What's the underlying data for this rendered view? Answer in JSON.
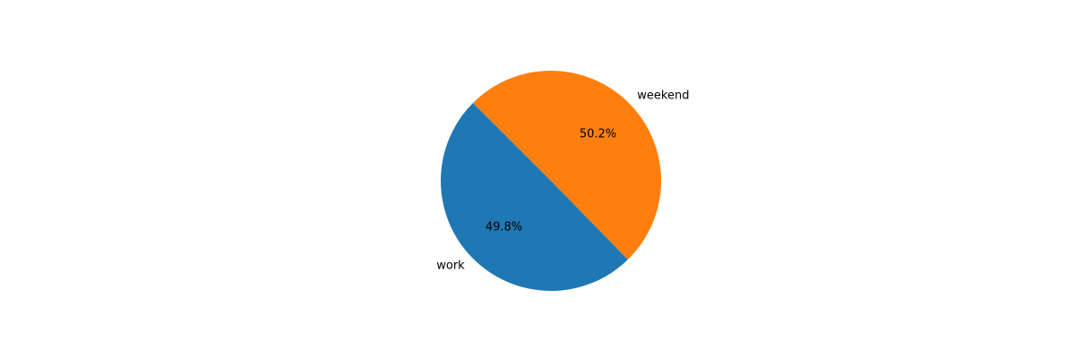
{
  "chart_data": {
    "type": "pie",
    "title": "",
    "categories": [
      "work",
      "weekend"
    ],
    "values": [
      49.8,
      50.2
    ],
    "percent_labels": [
      "49.8%",
      "50.2%"
    ],
    "colors": [
      "#1f77b4",
      "#ff7f0e"
    ],
    "start_angle_deg": 135,
    "direction": "counterclockwise",
    "legend": "none"
  }
}
